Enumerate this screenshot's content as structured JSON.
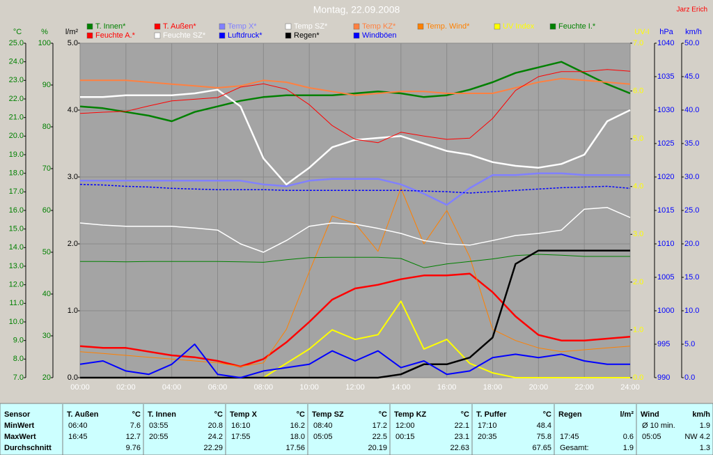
{
  "chart_data": {
    "type": "line",
    "title": "Montag, 22.09.2008",
    "author": "Jarz Erich",
    "grid": true,
    "x": [
      0,
      1,
      2,
      3,
      4,
      5,
      6,
      7,
      8,
      9,
      10,
      11,
      12,
      13,
      14,
      15,
      16,
      17,
      18,
      19,
      20,
      21,
      22,
      23,
      24
    ],
    "xlim": [
      0,
      24
    ],
    "xticks": [
      {
        "value": 0,
        "label": "00:00"
      },
      {
        "value": 2,
        "label": "02:00"
      },
      {
        "value": 4,
        "label": "04:00"
      },
      {
        "value": 6,
        "label": "06:00"
      },
      {
        "value": 8,
        "label": "08:00"
      },
      {
        "value": 10,
        "label": "10:00"
      },
      {
        "value": 12,
        "label": "12:00"
      },
      {
        "value": 14,
        "label": "14:00"
      },
      {
        "value": 16,
        "label": "16:00"
      },
      {
        "value": 18,
        "label": "18:00"
      },
      {
        "value": 20,
        "label": "20:00"
      },
      {
        "value": 22,
        "label": "22:00"
      },
      {
        "value": 24,
        "label": "24:00"
      }
    ],
    "axes": [
      {
        "label": "°C",
        "color": "#008000",
        "side": "left",
        "lim": [
          7,
          25
        ],
        "ticks": [
          {
            "value": 25,
            "label": "25.0"
          },
          {
            "value": 24,
            "label": "24.0"
          },
          {
            "value": 23,
            "label": "23.0"
          },
          {
            "value": 22,
            "label": "22.0"
          },
          {
            "value": 21,
            "label": "21.0"
          },
          {
            "value": 20,
            "label": "20.0"
          },
          {
            "value": 19,
            "label": "19.0"
          },
          {
            "value": 18,
            "label": "18.0"
          },
          {
            "value": 17,
            "label": "17.0"
          },
          {
            "value": 16,
            "label": "16.0"
          },
          {
            "value": 15,
            "label": "15.0"
          },
          {
            "value": 14,
            "label": "14.0"
          },
          {
            "value": 13,
            "label": "13.0"
          },
          {
            "value": 12,
            "label": "12.0"
          },
          {
            "value": 11,
            "label": "11.0"
          },
          {
            "value": 10,
            "label": "10.0"
          },
          {
            "value": 9,
            "label": "9.0"
          },
          {
            "value": 8,
            "label": "8.0"
          },
          {
            "value": 7,
            "label": "7.0"
          }
        ]
      },
      {
        "label": "%",
        "color": "#008000",
        "side": "left",
        "lim": [
          20,
          100
        ],
        "ticks": [
          100,
          90,
          80,
          70,
          60,
          50,
          40,
          30,
          20
        ]
      },
      {
        "label": "l/m²",
        "color": "#000000",
        "side": "left",
        "lim": [
          0,
          5
        ],
        "ticks": [
          {
            "value": 5,
            "label": "5.0"
          },
          {
            "value": 4,
            "label": "4.0"
          },
          {
            "value": 3,
            "label": "3.0"
          },
          {
            "value": 2,
            "label": "2.0"
          },
          {
            "value": 1,
            "label": "1.0"
          },
          {
            "value": 0,
            "label": "0.0"
          }
        ]
      },
      {
        "label": "UV-I",
        "color": "#ffff00",
        "side": "right",
        "lim": [
          0,
          7
        ],
        "ticks": [
          {
            "value": 7,
            "label": "7.0"
          },
          {
            "value": 6,
            "label": "6.0"
          },
          {
            "value": 5,
            "label": "5.0"
          },
          {
            "value": 4,
            "label": "4.0"
          },
          {
            "value": 3,
            "label": "3.0"
          },
          {
            "value": 2,
            "label": "2.0"
          },
          {
            "value": 1,
            "label": "1.0"
          },
          {
            "value": 0,
            "label": "0.0"
          }
        ]
      },
      {
        "label": "hPa",
        "color": "#0000ff",
        "side": "right",
        "lim": [
          990,
          1040
        ],
        "ticks": [
          1040,
          1035,
          1030,
          1025,
          1020,
          1015,
          1010,
          1005,
          1000,
          995,
          990
        ]
      },
      {
        "label": "km/h",
        "color": "#0000ff",
        "side": "right",
        "lim": [
          0,
          50
        ],
        "ticks": [
          {
            "value": 50,
            "label": "50.0"
          },
          {
            "value": 45,
            "label": "45.0"
          },
          {
            "value": 40,
            "label": "40.0"
          },
          {
            "value": 35,
            "label": "35.0"
          },
          {
            "value": 30,
            "label": "30.0"
          },
          {
            "value": 25,
            "label": "25.0"
          },
          {
            "value": 20,
            "label": "20.0"
          },
          {
            "value": 15,
            "label": "15.0"
          },
          {
            "value": 10,
            "label": "10.0"
          },
          {
            "value": 5,
            "label": "5.0"
          },
          {
            "value": 0,
            "label": "0.0"
          }
        ]
      }
    ],
    "series": [
      {
        "name": "T. Innen*",
        "color": "#008000",
        "axis": "°C",
        "width": 2.5,
        "values": [
          21.6,
          21.5,
          21.3,
          21.1,
          20.8,
          21.3,
          21.6,
          21.9,
          22.1,
          22.2,
          22.2,
          22.2,
          22.3,
          22.4,
          22.3,
          22.1,
          22.2,
          22.5,
          22.9,
          23.4,
          23.7,
          24.0,
          23.4,
          22.8,
          22.3
        ]
      },
      {
        "name": "T. Außen*",
        "color": "#ff0000",
        "axis": "°C",
        "width": 2.5,
        "values": [
          8.7,
          8.6,
          8.6,
          8.4,
          8.2,
          8.1,
          7.9,
          7.6,
          8.0,
          8.9,
          10.0,
          11.2,
          11.8,
          12.0,
          12.3,
          12.5,
          12.5,
          12.6,
          11.6,
          10.3,
          9.3,
          9.0,
          9.0,
          9.1,
          9.2
        ]
      },
      {
        "name": "Temp X*",
        "color": "#8080ff",
        "axis": "°C",
        "width": 2.5,
        "values": [
          17.6,
          17.6,
          17.6,
          17.6,
          17.6,
          17.6,
          17.6,
          17.6,
          17.4,
          17.3,
          17.6,
          17.7,
          17.7,
          17.7,
          17.4,
          16.9,
          16.3,
          17.2,
          17.9,
          17.9,
          18.0,
          18.0,
          17.9,
          17.9,
          17.9
        ]
      },
      {
        "name": "Temp SZ*",
        "color": "#ffffff",
        "axis": "°C",
        "width": 2.5,
        "values": [
          22.1,
          22.1,
          22.2,
          22.2,
          22.2,
          22.3,
          22.5,
          21.6,
          18.8,
          17.4,
          18.3,
          19.4,
          19.8,
          19.9,
          20.0,
          19.6,
          19.2,
          19.0,
          18.6,
          18.4,
          18.3,
          18.5,
          19.0,
          20.8,
          21.4
        ]
      },
      {
        "name": "Temp KZ*",
        "color": "#ff8040",
        "axis": "°C",
        "width": 2,
        "values": [
          23.0,
          23.0,
          23.0,
          22.9,
          22.8,
          22.7,
          22.6,
          22.7,
          23.0,
          22.9,
          22.6,
          22.4,
          22.2,
          22.3,
          22.4,
          22.4,
          22.3,
          22.3,
          22.3,
          22.6,
          22.9,
          23.1,
          23.0,
          22.9,
          22.8
        ]
      },
      {
        "name": "Temp. Wind*",
        "color": "#ff8000",
        "axis": "°C",
        "width": 1,
        "values": [
          8.4,
          8.3,
          8.2,
          8.1,
          8.0,
          7.9,
          7.8,
          7.6,
          7.8,
          9.6,
          12.7,
          15.7,
          15.3,
          13.8,
          17.2,
          14.2,
          16.0,
          13.5,
          9.6,
          9.0,
          8.6,
          8.4,
          8.5,
          8.6,
          8.7
        ]
      },
      {
        "name": "UV Index",
        "color": "#ffff00",
        "axis": "UV-I",
        "width": 2,
        "values": [
          0,
          0,
          0,
          0,
          0,
          0,
          0,
          0,
          0,
          0.3,
          0.6,
          1.0,
          0.8,
          0.9,
          1.6,
          0.6,
          0.8,
          0.3,
          0.1,
          0,
          0,
          0,
          0,
          0,
          0
        ]
      },
      {
        "name": "Feuchte I.*",
        "color": "#008000",
        "axis": "%",
        "width": 1,
        "values": [
          47.8,
          47.8,
          47.7,
          47.8,
          47.8,
          47.8,
          47.8,
          47.7,
          47.6,
          48.2,
          48.7,
          48.8,
          48.8,
          48.8,
          48.5,
          46.3,
          47.2,
          47.8,
          48.4,
          49.2,
          49.5,
          49.3,
          49.0,
          49.0,
          49.0
        ]
      },
      {
        "name": "Feuchte A.*",
        "color": "#ff0000",
        "axis": "%",
        "width": 1,
        "values": [
          83.2,
          83.5,
          83.7,
          85,
          86.2,
          86.6,
          87,
          89.5,
          90.3,
          89,
          85.3,
          80.3,
          77,
          76.2,
          78.7,
          77.8,
          77,
          77.3,
          82,
          88.7,
          92,
          93.2,
          93.2,
          93.7,
          93.3
        ]
      },
      {
        "name": "Feuchte SZ*",
        "color": "#ffffff",
        "axis": "%",
        "width": 1.5,
        "values": [
          57,
          56.5,
          56.2,
          56.2,
          56.2,
          55.8,
          55.3,
          52,
          50,
          52.8,
          56.2,
          57,
          56.7,
          55.7,
          54.5,
          52.8,
          52,
          51.7,
          52.8,
          54,
          54.5,
          55.3,
          60.3,
          60.7,
          58.3
        ]
      },
      {
        "name": "Luftdruck*",
        "color": "#0000ff",
        "axis": "hPa",
        "width": 1.5,
        "dash": true,
        "values": [
          1018.9,
          1018.8,
          1018.6,
          1018.5,
          1018.3,
          1018.2,
          1018.1,
          1018.1,
          1018.1,
          1018.0,
          1018.0,
          1018.0,
          1018.0,
          1018.0,
          1018.0,
          1017.9,
          1017.8,
          1017.6,
          1017.8,
          1018.0,
          1018.2,
          1018.4,
          1018.5,
          1018.6,
          1018.3
        ]
      },
      {
        "name": "Regen*",
        "color": "#000000",
        "axis": "l/m²",
        "width": 2.5,
        "values": [
          0,
          0,
          0,
          0,
          0,
          0,
          0,
          0,
          0,
          0,
          0,
          0,
          0,
          0,
          0.05,
          0.2,
          0.2,
          0.3,
          0.6,
          1.7,
          1.9,
          1.9,
          1.9,
          1.9,
          1.9
        ]
      },
      {
        "name": "Windböen",
        "color": "#0000ff",
        "axis": "km/h",
        "width": 2,
        "values": [
          2.0,
          2.5,
          1.0,
          0.5,
          2.0,
          5.0,
          0.5,
          0,
          1.0,
          1.5,
          2.0,
          4.0,
          2.5,
          4.0,
          1.5,
          2.5,
          0.5,
          1.0,
          3.0,
          3.5,
          3.0,
          3.5,
          2.5,
          2.0,
          2.0
        ]
      }
    ]
  },
  "table": {
    "row_labels": [
      "Sensor",
      "MinWert",
      "MaxWert",
      "Durchschnitt"
    ],
    "columns": [
      {
        "title": "T. Außen",
        "unit": "°C",
        "rows": [
          [
            "06:40",
            "7.6"
          ],
          [
            "16:45",
            "12.7"
          ],
          [
            null,
            "9.76"
          ]
        ]
      },
      {
        "title": "T. Innen",
        "unit": "°C",
        "rows": [
          [
            "03:55",
            "20.8"
          ],
          [
            "20:55",
            "24.2"
          ],
          [
            null,
            "22.29"
          ]
        ]
      },
      {
        "title": "Temp X",
        "unit": "°C",
        "rows": [
          [
            "16:10",
            "16.2"
          ],
          [
            "17:55",
            "18.0"
          ],
          [
            null,
            "17.56"
          ]
        ]
      },
      {
        "title": "Temp SZ",
        "unit": "°C",
        "rows": [
          [
            "08:40",
            "17.2"
          ],
          [
            "05:05",
            "22.5"
          ],
          [
            null,
            "20.19"
          ]
        ]
      },
      {
        "title": "Temp KZ",
        "unit": "°C",
        "rows": [
          [
            "12:00",
            "22.1"
          ],
          [
            "00:15",
            "23.1"
          ],
          [
            null,
            "22.63"
          ]
        ]
      },
      {
        "title": "T. Puffer",
        "unit": "°C",
        "rows": [
          [
            "17:10",
            "48.4"
          ],
          [
            "20:35",
            "75.8"
          ],
          [
            null,
            "67.65"
          ]
        ]
      },
      {
        "title": "Regen",
        "unit": "l/m²",
        "rows": [
          [
            null,
            null
          ],
          [
            "17:45",
            "0.6"
          ],
          [
            "Gesamt:",
            "1.9"
          ]
        ]
      },
      {
        "title": "Wind",
        "unit": "km/h",
        "rows": [
          [
            "Ø 10 min.",
            "1.9"
          ],
          [
            "05:05",
            "NW 4.2"
          ],
          [
            null,
            "1.3"
          ]
        ]
      }
    ]
  }
}
